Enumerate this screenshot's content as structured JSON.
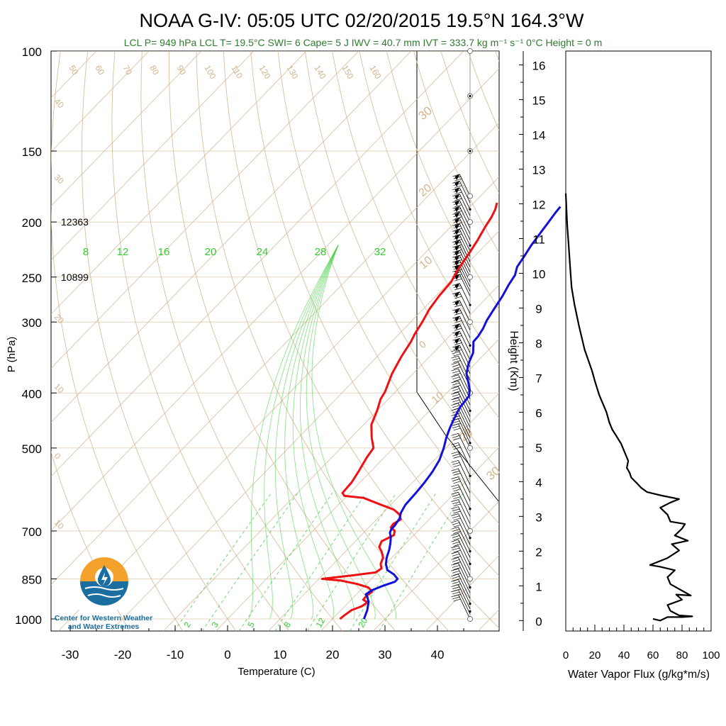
{
  "title": "NOAA G-IV: 05:05 UTC 02/20/2015  19.5°N 164.3°W",
  "subtitle": "LCL P= 949 hPa  LCL T= 19.5°C  SWI= 6  Cape= 5 J  IWV = 40.7 mm  IVT = 333.7 kg m⁻¹ s⁻¹  0°C Height = 0 m",
  "colors": {
    "temperature": "#ee1111",
    "dewpoint": "#1111dd",
    "adiabats": "#d2b48c",
    "mixing_ratio": "#33cc33",
    "subtitle": "#2e7d2e",
    "logo_orange": "#f4a12c",
    "logo_blue": "#1b6fa0"
  },
  "logo": {
    "line1": "Center for Western Weather",
    "line2": "and Water Extremes"
  },
  "height_labels": [
    {
      "p": 200,
      "text": "12363"
    },
    {
      "p": 250,
      "text": "10899"
    }
  ],
  "chart_data": [
    {
      "type": "line",
      "name": "skew-t",
      "xlabel": "Temperature (C)",
      "ylabel": "P (hPa)",
      "x_ticks": [
        -30,
        -20,
        -10,
        0,
        10,
        20,
        30,
        40
      ],
      "y_ticks": [
        100,
        150,
        200,
        250,
        300,
        400,
        500,
        700,
        850,
        1000
      ],
      "xlim": [
        -33,
        50
      ],
      "ylim": [
        1050,
        100
      ],
      "y_scale": "log",
      "isotherm_labels": [
        "40",
        "30",
        "20",
        "10",
        "0",
        "10",
        "20",
        "30"
      ],
      "adiabat_labels": [
        "50",
        "60",
        "70",
        "80",
        "90",
        "100",
        "110",
        "120",
        "130",
        "140",
        "150",
        "160"
      ],
      "mixing_ratio_labels_top": [
        "8",
        "12",
        "16",
        "20",
        "24",
        "28",
        "32"
      ],
      "mixing_ratio_labels_bottom": [
        "2",
        "3",
        "5",
        "8",
        "12",
        "20"
      ],
      "series": [
        {
          "name": "temperature",
          "points": [
            [
              21.4,
              1000
            ],
            [
              21.6,
              985
            ],
            [
              22,
              965
            ],
            [
              23.2,
              950
            ],
            [
              23.6,
              935
            ],
            [
              22.3,
              925
            ],
            [
              22.2,
              912
            ],
            [
              22.5,
              895
            ],
            [
              21,
              880
            ],
            [
              18.3,
              868
            ],
            [
              14.5,
              856
            ],
            [
              10.6,
              850
            ],
            [
              12.4,
              846
            ],
            [
              15.8,
              838
            ],
            [
              19.6,
              828
            ],
            [
              20,
              815
            ],
            [
              19,
              800
            ],
            [
              18.3,
              780
            ],
            [
              17,
              762
            ],
            [
              15.6,
              747
            ],
            [
              15,
              730
            ],
            [
              16.2,
              712
            ],
            [
              15.6,
              700
            ],
            [
              14.2,
              690
            ],
            [
              14,
              680
            ],
            [
              14.6,
              668
            ],
            [
              13.5,
              655
            ],
            [
              11.5,
              642
            ],
            [
              8.3,
              630
            ],
            [
              3.5,
              612
            ],
            [
              -0.5,
              607
            ],
            [
              -1.4,
              600
            ],
            [
              -1.6,
              575
            ],
            [
              -2.3,
              550
            ],
            [
              -3.3,
              520
            ],
            [
              -3.8,
              500
            ],
            [
              -6,
              480
            ],
            [
              -8.5,
              455
            ],
            [
              -10,
              430
            ],
            [
              -11.5,
              410
            ],
            [
              -12,
              398
            ],
            [
              -14,
              370
            ],
            [
              -15.4,
              345
            ],
            [
              -16.3,
              325
            ],
            [
              -17,
              315
            ],
            [
              -17.8,
              300
            ],
            [
              -18.8,
              285
            ],
            [
              -19.4,
              270
            ],
            [
              -19.7,
              255
            ],
            [
              -20.5,
              245
            ],
            [
              -21.1,
              235
            ],
            [
              -21.7,
              225
            ],
            [
              -22.4,
              215
            ],
            [
              -23.3,
              205
            ],
            [
              -24,
              196
            ],
            [
              -24.7,
              190
            ],
            [
              -25.6,
              185
            ]
          ]
        },
        {
          "name": "dewpoint",
          "points": [
            [
              26,
              1000
            ],
            [
              25,
              965
            ],
            [
              23.8,
              935
            ],
            [
              22.6,
              915
            ],
            [
              21.8,
              905
            ],
            [
              22.2,
              890
            ],
            [
              23.4,
              875
            ],
            [
              25,
              860
            ],
            [
              25,
              850
            ],
            [
              23.5,
              835
            ],
            [
              21.4,
              820
            ],
            [
              20,
              800
            ],
            [
              19,
              780
            ],
            [
              18,
              755
            ],
            [
              17,
              735
            ],
            [
              16,
              718
            ],
            [
              15,
              705
            ],
            [
              14.6,
              695
            ],
            [
              14.6,
              685
            ],
            [
              14.2,
              665
            ],
            [
              13.4,
              650
            ],
            [
              12.8,
              630
            ],
            [
              12.6,
              600
            ],
            [
              12.3,
              575
            ],
            [
              11.8,
              550
            ],
            [
              11,
              525
            ],
            [
              9.6,
              500
            ],
            [
              8.2,
              480
            ],
            [
              7,
              460
            ],
            [
              6.2,
              445
            ],
            [
              5.2,
              425
            ],
            [
              4.8,
              405
            ],
            [
              3.8,
              395
            ],
            [
              2.4,
              385
            ],
            [
              0.2,
              370
            ],
            [
              -1.3,
              355
            ],
            [
              -2.4,
              340
            ],
            [
              -3.7,
              330
            ],
            [
              -4.4,
              325
            ],
            [
              -4.5,
              318
            ],
            [
              -5,
              308
            ],
            [
              -5.8,
              298
            ],
            [
              -6.5,
              285
            ],
            [
              -7.3,
              270
            ],
            [
              -8.2,
              258
            ],
            [
              -8.8,
              248
            ],
            [
              -9.9,
              240
            ],
            [
              -10.5,
              230
            ],
            [
              -11.2,
              220
            ],
            [
              -11.7,
              210
            ],
            [
              -12.2,
              200
            ],
            [
              -12.6,
              193
            ],
            [
              -12.8,
              188
            ]
          ]
        }
      ]
    },
    {
      "type": "line",
      "name": "water-vapor-flux",
      "xlabel": "Water Vapor Flux (g/kg*m/s)",
      "ylabel": "Height (Km)",
      "x_ticks": [
        0,
        20,
        40,
        60,
        80,
        100
      ],
      "y_ticks": [
        0,
        1,
        2,
        3,
        4,
        5,
        6,
        7,
        8,
        9,
        10,
        11,
        12,
        13,
        14,
        15,
        16
      ],
      "xlim": [
        0,
        100
      ],
      "ylim": [
        -0.3,
        16.4
      ],
      "series": [
        {
          "name": "flux",
          "points": [
            [
              60,
              0.05
            ],
            [
              65,
              0
            ],
            [
              70,
              0.1
            ],
            [
              80,
              0.1
            ],
            [
              87,
              0.12
            ],
            [
              78,
              0.15
            ],
            [
              72,
              0.28
            ],
            [
              70,
              0.45
            ],
            [
              80,
              0.6
            ],
            [
              76,
              0.75
            ],
            [
              86,
              0.72
            ],
            [
              72,
              1.05
            ],
            [
              70,
              1.25
            ],
            [
              75,
              1.45
            ],
            [
              65,
              1.55
            ],
            [
              58,
              1.6
            ],
            [
              70,
              1.8
            ],
            [
              78,
              2.02
            ],
            [
              73,
              2.2
            ],
            [
              84,
              2.3
            ],
            [
              75,
              2.45
            ],
            [
              80,
              2.65
            ],
            [
              82,
              2.78
            ],
            [
              72,
              2.85
            ],
            [
              70,
              3.05
            ],
            [
              65,
              3.25
            ],
            [
              72,
              3.4
            ],
            [
              78,
              3.5
            ],
            [
              66,
              3.6
            ],
            [
              56,
              3.7
            ],
            [
              52,
              3.82
            ],
            [
              49,
              3.95
            ],
            [
              45,
              4.12
            ],
            [
              44,
              4.25
            ],
            [
              42,
              4.4
            ],
            [
              43,
              4.6
            ],
            [
              40,
              4.9
            ],
            [
              38,
              5.1
            ],
            [
              35,
              5.3
            ],
            [
              32,
              5.5
            ],
            [
              30,
              5.7
            ],
            [
              28,
              6
            ],
            [
              23,
              6.5
            ],
            [
              20,
              6.9
            ],
            [
              18,
              7.2
            ],
            [
              13,
              7.8
            ],
            [
              9,
              8.5
            ],
            [
              6,
              9.1
            ],
            [
              4,
              9.6
            ],
            [
              3,
              10.2
            ],
            [
              2,
              10.8
            ],
            [
              1,
              11.4
            ],
            [
              0,
              12.3
            ]
          ]
        }
      ]
    }
  ]
}
